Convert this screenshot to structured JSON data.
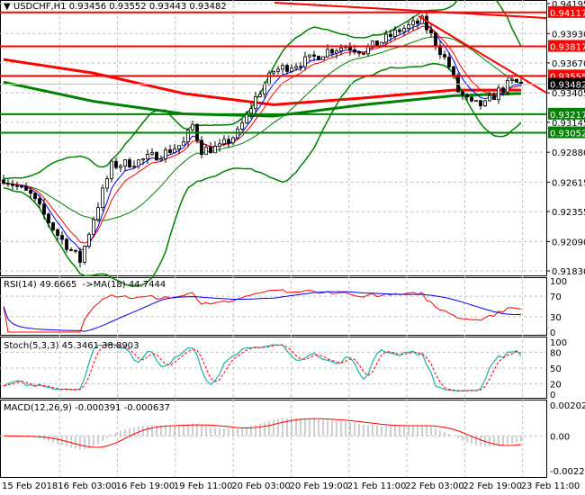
{
  "header": {
    "symbol": "USDCHF,H1",
    "open": "0.93456",
    "high": "0.93552",
    "low": "0.93443",
    "close": "0.93482"
  },
  "price_axis": [
    "0.94195",
    "0.93930",
    "0.93670",
    "0.93405",
    "0.93145",
    "0.92880",
    "0.92615",
    "0.92355",
    "0.92090",
    "0.91830"
  ],
  "levels": [
    {
      "price": "0.94117",
      "color": "#ff0000"
    },
    {
      "price": "0.93817",
      "color": "#ff0000"
    },
    {
      "price": "0.93555",
      "color": "#ff0000"
    },
    {
      "price": "0.93217",
      "color": "#008000"
    },
    {
      "price": "0.93052",
      "color": "#008000"
    }
  ],
  "current_price": "0.93482",
  "time_axis": [
    "15 Feb 2018",
    "16 Feb 03:00",
    "16 Feb 19:00",
    "19 Feb 11:00",
    "20 Feb 03:00",
    "20 Feb 19:00",
    "21 Feb 11:00",
    "22 Feb 03:00",
    "22 Feb 19:00",
    "23 Feb 11:00"
  ],
  "rsi": {
    "label": "RSI(14) 49.6665  ->MA(18) 44.7444",
    "axis": [
      "100",
      "70",
      "30",
      "0"
    ]
  },
  "stoch": {
    "label": "Stoch(5,3,3) 45.3461 38.8903",
    "axis": [
      "100",
      "80",
      "50",
      "20",
      "0"
    ]
  },
  "macd": {
    "label": "MACD(12,26,9) -0.000391 -0.000637",
    "axis": [
      "0.002029",
      "0.00",
      "-0.002276"
    ]
  },
  "chart_data": {
    "type": "candlestick",
    "ylim": [
      0.9183,
      0.94195
    ],
    "approx_close_path": [
      [
        0,
        0.9265
      ],
      [
        6,
        0.925
      ],
      [
        12,
        0.9215
      ],
      [
        17,
        0.9192
      ],
      [
        20,
        0.923
      ],
      [
        24,
        0.9276
      ],
      [
        30,
        0.928
      ],
      [
        36,
        0.9288
      ],
      [
        40,
        0.9296
      ],
      [
        42,
        0.9312
      ],
      [
        44,
        0.929
      ],
      [
        48,
        0.9292
      ],
      [
        52,
        0.9305
      ],
      [
        56,
        0.9336
      ],
      [
        60,
        0.936
      ],
      [
        64,
        0.9365
      ],
      [
        68,
        0.937
      ],
      [
        72,
        0.9378
      ],
      [
        76,
        0.9382
      ],
      [
        80,
        0.9378
      ],
      [
        84,
        0.9386
      ],
      [
        88,
        0.9396
      ],
      [
        93,
        0.9404
      ],
      [
        96,
        0.9385
      ],
      [
        99,
        0.9364
      ],
      [
        101,
        0.9342
      ],
      [
        104,
        0.933
      ],
      [
        107,
        0.933
      ],
      [
        110,
        0.9342
      ],
      [
        113,
        0.935
      ],
      [
        115,
        0.93482
      ]
    ],
    "ma_red": [
      [
        0,
        0.937
      ],
      [
        20,
        0.9358
      ],
      [
        40,
        0.934
      ],
      [
        60,
        0.933
      ],
      [
        80,
        0.9336
      ],
      [
        100,
        0.9343
      ],
      [
        115,
        0.9343
      ]
    ],
    "ma_green": [
      [
        0,
        0.935
      ],
      [
        20,
        0.9333
      ],
      [
        40,
        0.9322
      ],
      [
        60,
        0.932
      ],
      [
        80,
        0.933
      ],
      [
        100,
        0.9338
      ],
      [
        115,
        0.934
      ]
    ]
  }
}
